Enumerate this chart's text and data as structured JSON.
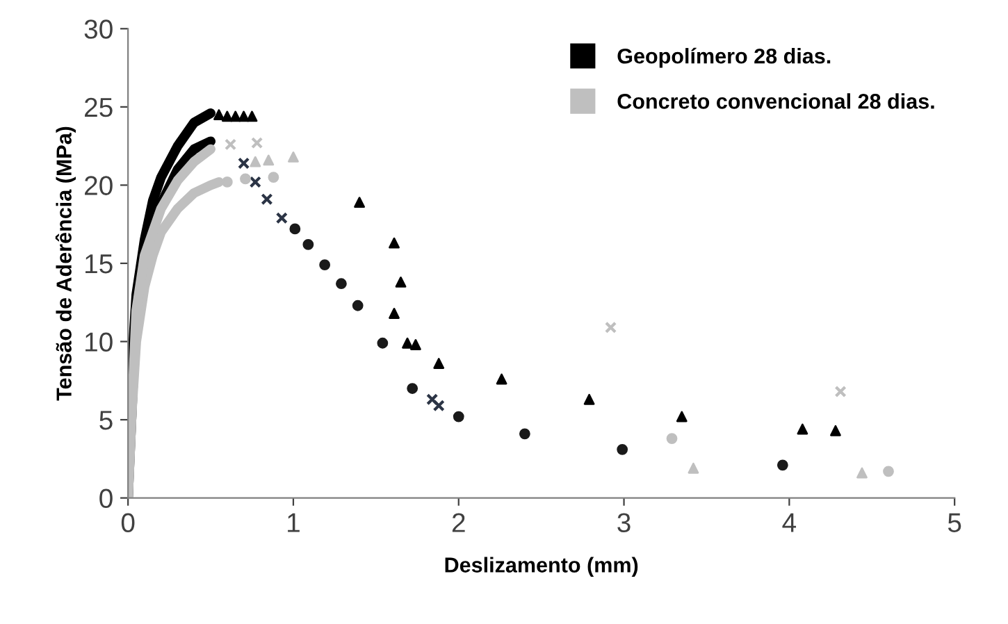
{
  "chart_data": {
    "type": "scatter",
    "xlabel": "Deslizamento (mm)",
    "ylabel": "Tensão de Aderência (MPa)",
    "xlim": [
      0,
      5
    ],
    "ylim": [
      0,
      30
    ],
    "xticks": [
      0,
      1,
      2,
      3,
      4,
      5
    ],
    "yticks": [
      0,
      5,
      10,
      15,
      20,
      25,
      30
    ],
    "grid": false,
    "legend": "top right",
    "series": [
      {
        "name": "Geopolímero 28 dias.",
        "type": "line",
        "color": "#000000",
        "x": [
          0,
          0.02,
          0.05,
          0.1,
          0.15,
          0.2,
          0.3,
          0.4,
          0.5
        ],
        "values": [
          0,
          8,
          13,
          16.5,
          19,
          20.5,
          22.5,
          24,
          24.6
        ]
      },
      {
        "type": "line",
        "color": "#000000",
        "x": [
          0,
          0.05,
          0.1,
          0.2,
          0.3,
          0.4,
          0.5
        ],
        "values": [
          0,
          12,
          15.5,
          18.8,
          21,
          22.3,
          22.8
        ]
      },
      {
        "marker": "triangle",
        "color": "#000000",
        "x": [
          0.55,
          0.6,
          0.65,
          0.7,
          0.75,
          1.4,
          1.61,
          1.65,
          1.61,
          1.69,
          1.74,
          1.88,
          2.26,
          2.79,
          3.35,
          4.08,
          4.28
        ],
        "values": [
          24.5,
          24.4,
          24.4,
          24.4,
          24.4,
          18.9,
          16.3,
          13.8,
          11.8,
          9.9,
          9.8,
          8.6,
          7.6,
          6.3,
          5.2,
          4.4,
          4.3
        ]
      },
      {
        "marker": "circle",
        "color": "#1a1a1a",
        "x": [
          1.01,
          1.09,
          1.19,
          1.29,
          1.39,
          1.54,
          1.72,
          2.0,
          2.4,
          2.99,
          3.96
        ],
        "values": [
          17.2,
          16.2,
          14.9,
          13.7,
          12.3,
          9.9,
          7.0,
          5.2,
          4.1,
          3.1,
          2.1
        ]
      },
      {
        "marker": "cross",
        "color": "#2b3445",
        "x": [
          0.7,
          0.77,
          0.84,
          0.93,
          1.84,
          1.88
        ],
        "values": [
          21.4,
          20.2,
          19.1,
          17.9,
          6.3,
          5.9
        ]
      },
      {
        "name": "Concreto convencional 28 dias.",
        "type": "line",
        "color": "#bfbfbf",
        "x": [
          0,
          0.02,
          0.05,
          0.1,
          0.15,
          0.2,
          0.3,
          0.4,
          0.5,
          0.55
        ],
        "values": [
          0,
          5,
          10,
          13.5,
          15.5,
          17,
          18.5,
          19.5,
          20,
          20.2
        ]
      },
      {
        "type": "line",
        "color": "#bfbfbf",
        "x": [
          0,
          0.05,
          0.1,
          0.2,
          0.3,
          0.4,
          0.5
        ],
        "values": [
          0,
          12,
          15.5,
          18.5,
          20.3,
          21.5,
          22.3
        ]
      },
      {
        "marker": "triangle",
        "color": "#bfbfbf",
        "x": [
          0.77,
          0.85,
          1.0,
          3.42,
          4.44
        ],
        "values": [
          21.5,
          21.6,
          21.8,
          1.9,
          1.6
        ]
      },
      {
        "marker": "circle",
        "color": "#bfbfbf",
        "x": [
          0.6,
          0.71,
          0.88,
          3.29,
          4.6
        ],
        "values": [
          20.2,
          20.4,
          20.5,
          3.8,
          1.7
        ]
      },
      {
        "marker": "cross",
        "color": "#bfbfbf",
        "x": [
          0.62,
          0.78,
          2.92,
          4.31
        ],
        "values": [
          22.6,
          22.7,
          10.9,
          6.8
        ]
      }
    ]
  }
}
